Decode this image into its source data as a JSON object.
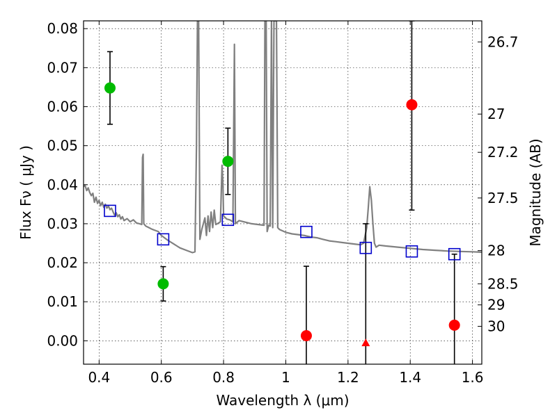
{
  "chart_data": {
    "type": "scatter",
    "xlabel": "Wavelength  λ (μm)",
    "ylabel": "Flux  Fν  ( μJy )",
    "ylabel_right": "Magnitude (AB)",
    "xlim": [
      0.35,
      1.63
    ],
    "ylim": [
      -0.006,
      0.082
    ],
    "grid": true,
    "x_ticks": [
      0.4,
      0.6,
      0.8,
      1.0,
      1.2,
      1.4,
      1.6
    ],
    "x_tick_labels": [
      "0.4",
      "0.6",
      "0.8",
      "1",
      "1.2",
      "1.4",
      "1.6"
    ],
    "y_ticks": [
      0.0,
      0.01,
      0.02,
      0.03,
      0.04,
      0.05,
      0.06,
      0.07,
      0.08
    ],
    "y_tick_labels": [
      "0.00",
      "0.01",
      "0.02",
      "0.03",
      "0.04",
      "0.05",
      "0.06",
      "0.07",
      "0.08"
    ],
    "mag_ticks": [
      {
        "label": "26.7",
        "flux": 0.0766
      },
      {
        "label": "27",
        "flux": 0.0581
      },
      {
        "label": "27.2",
        "flux": 0.0483
      },
      {
        "label": "27.5",
        "flux": 0.0366
      },
      {
        "label": "28",
        "flux": 0.0231
      },
      {
        "label": "28.5",
        "flux": 0.0146
      },
      {
        "label": "29",
        "flux": 0.0092
      },
      {
        "label": "30",
        "flux": 0.0037
      }
    ],
    "model_sed": {
      "color": "#808080",
      "points": [
        [
          0.35,
          0.0395
        ],
        [
          0.355,
          0.0398
        ],
        [
          0.36,
          0.0385
        ],
        [
          0.365,
          0.0392
        ],
        [
          0.37,
          0.038
        ],
        [
          0.375,
          0.0372
        ],
        [
          0.38,
          0.0378
        ],
        [
          0.385,
          0.0355
        ],
        [
          0.39,
          0.0368
        ],
        [
          0.395,
          0.0352
        ],
        [
          0.4,
          0.036
        ],
        [
          0.405,
          0.0346
        ],
        [
          0.41,
          0.0355
        ],
        [
          0.415,
          0.0342
        ],
        [
          0.42,
          0.035
        ],
        [
          0.425,
          0.034
        ],
        [
          0.43,
          0.0345
        ],
        [
          0.435,
          0.0336
        ],
        [
          0.44,
          0.034
        ],
        [
          0.445,
          0.033
        ],
        [
          0.45,
          0.0322
        ],
        [
          0.455,
          0.0328
        ],
        [
          0.46,
          0.0318
        ],
        [
          0.465,
          0.0323
        ],
        [
          0.47,
          0.0312
        ],
        [
          0.475,
          0.0318
        ],
        [
          0.48,
          0.0308
        ],
        [
          0.49,
          0.0313
        ],
        [
          0.5,
          0.0305
        ],
        [
          0.51,
          0.031
        ],
        [
          0.52,
          0.0302
        ],
        [
          0.53,
          0.03
        ],
        [
          0.537,
          0.0298
        ],
        [
          0.5395,
          0.047
        ],
        [
          0.5415,
          0.0478
        ],
        [
          0.5435,
          0.03
        ],
        [
          0.55,
          0.0294
        ],
        [
          0.56,
          0.029
        ],
        [
          0.57,
          0.0286
        ],
        [
          0.58,
          0.0283
        ],
        [
          0.59,
          0.028
        ],
        [
          0.6,
          0.027
        ],
        [
          0.62,
          0.0258
        ],
        [
          0.64,
          0.0248
        ],
        [
          0.66,
          0.0238
        ],
        [
          0.68,
          0.0232
        ],
        [
          0.7,
          0.0226
        ],
        [
          0.708,
          0.0228
        ],
        [
          0.713,
          0.05
        ],
        [
          0.716,
          0.082
        ],
        [
          0.72,
          0.082
        ],
        [
          0.724,
          0.026
        ],
        [
          0.73,
          0.0285
        ],
        [
          0.74,
          0.0315
        ],
        [
          0.745,
          0.027
        ],
        [
          0.75,
          0.032
        ],
        [
          0.755,
          0.028
        ],
        [
          0.76,
          0.033
        ],
        [
          0.765,
          0.029
        ],
        [
          0.77,
          0.0335
        ],
        [
          0.775,
          0.0298
        ],
        [
          0.78,
          0.03
        ],
        [
          0.79,
          0.0305
        ],
        [
          0.795,
          0.045
        ],
        [
          0.798,
          0.04
        ],
        [
          0.8,
          0.032
        ],
        [
          0.81,
          0.0312
        ],
        [
          0.82,
          0.031
        ],
        [
          0.83,
          0.0305
        ],
        [
          0.835,
          0.076
        ],
        [
          0.838,
          0.03
        ],
        [
          0.85,
          0.0308
        ],
        [
          0.87,
          0.0304
        ],
        [
          0.89,
          0.03
        ],
        [
          0.91,
          0.0298
        ],
        [
          0.93,
          0.0296
        ],
        [
          0.933,
          0.082
        ],
        [
          0.937,
          0.082
        ],
        [
          0.94,
          0.028
        ],
        [
          0.945,
          0.0296
        ],
        [
          0.95,
          0.0294
        ],
        [
          0.954,
          0.082
        ],
        [
          0.958,
          0.029
        ],
        [
          0.962,
          0.082
        ],
        [
          0.966,
          0.082
        ],
        [
          0.97,
          0.082
        ],
        [
          0.974,
          0.029
        ],
        [
          0.98,
          0.0285
        ],
        [
          1.0,
          0.0278
        ],
        [
          1.02,
          0.0274
        ],
        [
          1.04,
          0.0272
        ],
        [
          1.06,
          0.027
        ],
        [
          1.08,
          0.0266
        ],
        [
          1.1,
          0.0264
        ],
        [
          1.12,
          0.026
        ],
        [
          1.14,
          0.0256
        ],
        [
          1.16,
          0.0254
        ],
        [
          1.18,
          0.0252
        ],
        [
          1.2,
          0.025
        ],
        [
          1.22,
          0.0248
        ],
        [
          1.24,
          0.0246
        ],
        [
          1.25,
          0.025
        ],
        [
          1.26,
          0.029
        ],
        [
          1.265,
          0.034
        ],
        [
          1.27,
          0.0395
        ],
        [
          1.275,
          0.036
        ],
        [
          1.28,
          0.03
        ],
        [
          1.285,
          0.025
        ],
        [
          1.29,
          0.024
        ],
        [
          1.3,
          0.0245
        ],
        [
          1.32,
          0.0243
        ],
        [
          1.36,
          0.024
        ],
        [
          1.4,
          0.0237
        ],
        [
          1.44,
          0.0234
        ],
        [
          1.48,
          0.0232
        ],
        [
          1.52,
          0.023
        ],
        [
          1.56,
          0.0229
        ],
        [
          1.6,
          0.0228
        ],
        [
          1.63,
          0.0227
        ]
      ]
    },
    "series": [
      {
        "marker": "circle",
        "color": "#00bb00",
        "points": [
          {
            "x": 0.435,
            "y": 0.0648,
            "err": 0.0093
          },
          {
            "x": 0.606,
            "y": 0.0146,
            "err": 0.0044
          },
          {
            "x": 0.814,
            "y": 0.046,
            "err": 0.0085
          }
        ]
      },
      {
        "marker": "circle",
        "color": "#ff0000",
        "points": [
          {
            "x": 1.066,
            "y": 0.0013,
            "err_low": 0.008,
            "err_high": 0.0178
          },
          {
            "x": 1.405,
            "y": 0.0605,
            "err_low": 0.027,
            "err_high": 0.0215
          },
          {
            "x": 1.542,
            "y": 0.004,
            "err_low": 0.01,
            "err_high": 0.0182
          }
        ]
      },
      {
        "marker": "triangle",
        "color": "#ff0000",
        "points": [
          {
            "x": 1.257,
            "y": -0.0005,
            "err_low": 0.006,
            "err_high": 0.0305
          }
        ]
      },
      {
        "marker": "square-open",
        "color": "#0000cc",
        "points": [
          {
            "x": 0.435,
            "y": 0.0333
          },
          {
            "x": 0.606,
            "y": 0.026
          },
          {
            "x": 0.814,
            "y": 0.031
          },
          {
            "x": 1.066,
            "y": 0.0279
          },
          {
            "x": 1.257,
            "y": 0.0238
          },
          {
            "x": 1.405,
            "y": 0.0229
          },
          {
            "x": 1.542,
            "y": 0.0222
          }
        ]
      }
    ]
  }
}
